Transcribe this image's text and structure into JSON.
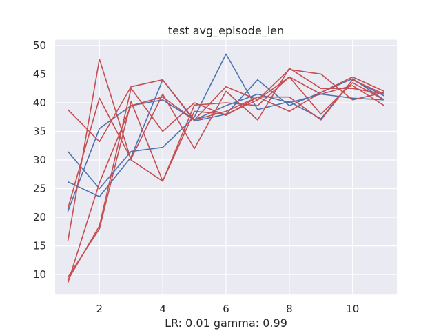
{
  "chart_data": {
    "type": "line",
    "title": "test avg_episode_len",
    "xlabel": "LR: 0.01 gamma: 0.99",
    "ylabel": "",
    "xlim": [
      0.6,
      11.4
    ],
    "ylim": [
      6.5,
      51
    ],
    "xticks": [
      2,
      4,
      6,
      8,
      10
    ],
    "yticks": [
      10,
      15,
      20,
      25,
      30,
      35,
      40,
      45,
      50
    ],
    "background": "#eaeaf2",
    "grid": true,
    "series": [
      {
        "color": "#4c72b0",
        "x": [
          1,
          2,
          3,
          4,
          5,
          6,
          7,
          8,
          9,
          10,
          11
        ],
        "y": [
          26.2,
          23.6,
          30.5,
          44.0,
          36.8,
          38.0,
          44.0,
          39.5,
          41.8,
          44.2,
          40.5
        ]
      },
      {
        "color": "#4c72b0",
        "x": [
          1,
          2,
          3,
          4,
          5,
          6,
          7,
          8,
          9,
          10,
          11
        ],
        "y": [
          31.5,
          25.0,
          31.5,
          32.2,
          37.5,
          48.5,
          38.8,
          40.2,
          37.2,
          44.0,
          41.2
        ]
      },
      {
        "color": "#4c72b0",
        "x": [
          1,
          2,
          3,
          4,
          5,
          6,
          7,
          8,
          9,
          10,
          11
        ],
        "y": [
          21.0,
          35.5,
          39.5,
          40.5,
          37.0,
          39.5,
          41.5,
          40.0,
          41.5,
          40.8,
          40.5
        ]
      },
      {
        "color": "#c44e52",
        "x": [
          1,
          2,
          3,
          4,
          5,
          6,
          7,
          8,
          9,
          10,
          11
        ],
        "y": [
          38.8,
          33.2,
          42.8,
          44.0,
          37.0,
          42.8,
          40.5,
          45.8,
          45.0,
          40.5,
          41.8
        ]
      },
      {
        "color": "#c44e52",
        "x": [
          1,
          2,
          3,
          4,
          5,
          6,
          7,
          8,
          9,
          10,
          11
        ],
        "y": [
          15.8,
          47.6,
          30.0,
          26.3,
          39.6,
          40.0,
          39.5,
          44.5,
          38.0,
          43.5,
          40.5
        ]
      },
      {
        "color": "#c44e52",
        "x": [
          1,
          2,
          3,
          4,
          5,
          6,
          7,
          8,
          9,
          10,
          11
        ],
        "y": [
          21.5,
          40.8,
          30.2,
          41.5,
          32.0,
          42.0,
          37.0,
          46.0,
          42.5,
          42.5,
          41.5
        ]
      },
      {
        "color": "#c44e52",
        "x": [
          1,
          2,
          3,
          4,
          5,
          6,
          7,
          8,
          9,
          10,
          11
        ],
        "y": [
          9.0,
          18.5,
          42.5,
          35.0,
          40.0,
          37.8,
          41.0,
          38.5,
          41.8,
          44.5,
          42.0
        ]
      },
      {
        "color": "#c44e52",
        "x": [
          1,
          2,
          3,
          4,
          5,
          6,
          7,
          8,
          9,
          10,
          11
        ],
        "y": [
          8.5,
          26.0,
          39.5,
          41.0,
          37.0,
          38.5,
          41.0,
          41.0,
          37.0,
          44.0,
          41.5
        ]
      },
      {
        "color": "#c44e52",
        "x": [
          1,
          2,
          3,
          4,
          5,
          6,
          7,
          8,
          9,
          10,
          11
        ],
        "y": [
          9.5,
          18.0,
          40.2,
          26.3,
          38.5,
          38.0,
          40.5,
          44.5,
          41.5,
          43.0,
          39.5
        ]
      }
    ]
  }
}
